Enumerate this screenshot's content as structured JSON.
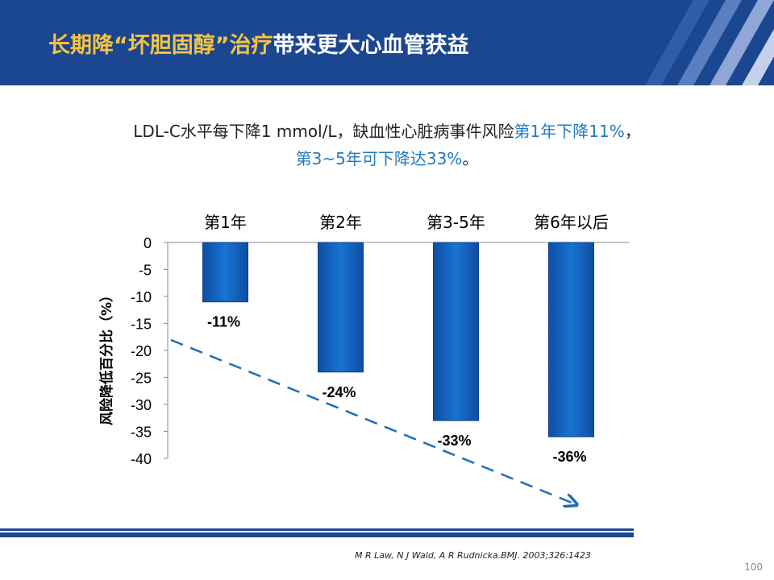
{
  "slide": {
    "title_part1": "长期降“坏胆固醇”治疗",
    "title_part2": "带来更大心血管获益",
    "subtitle_line1_plain": "LDL-C水平每下降1 mmol/L，缺血性心脏病事件风险",
    "subtitle_line1_highlight": "第1年下降11%",
    "subtitle_line1_tail": "，",
    "subtitle_line2_highlight": "第3~5年可下降达33%",
    "subtitle_line2_tail": "。",
    "citation": "M R Law, N J Wald, A R Rudnicka.BMJ. 2003;326:1423",
    "page_number": "100"
  },
  "colors": {
    "header_bg": "#1b4690",
    "title_highlight": "#f6c343",
    "text_highlight": "#1f7bc1",
    "bar": "#1565c0",
    "trend_line": "#1f6db5"
  },
  "chart_data": {
    "type": "bar",
    "categories": [
      "第1年",
      "第2年",
      "第3-5年",
      "第6年以后"
    ],
    "values": [
      -11,
      -24,
      -33,
      -36
    ],
    "data_labels": [
      "-11%",
      "-24%",
      "-33%",
      "-36%"
    ],
    "ylabel": "风险降低百分比（%）",
    "ylim": [
      -40,
      0
    ],
    "yticks": [
      0,
      -5,
      -10,
      -15,
      -20,
      -25,
      -30,
      -35,
      -40
    ],
    "x_axis_position": "top",
    "grid": false,
    "trend_arrow": "dashed, decreasing"
  }
}
